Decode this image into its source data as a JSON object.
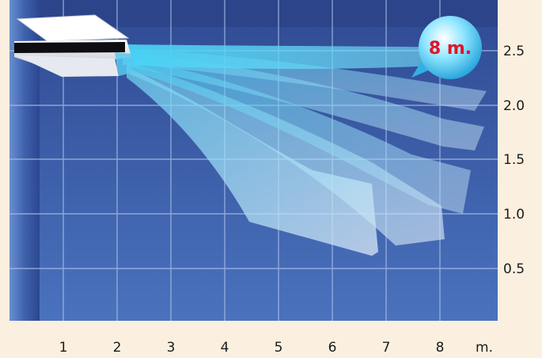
{
  "chart_data": {
    "type": "diagram",
    "x_ticks": [
      "1",
      "2",
      "3",
      "4",
      "5",
      "6",
      "7",
      "8"
    ],
    "x_unit": "m.",
    "y_ticks": [
      "2.5",
      "2.0",
      "1.5",
      "1.0",
      "0.5"
    ],
    "badge": "8 m.",
    "colors": {
      "room_background": "#3c5da7",
      "page_background": "#fbf0df",
      "airflow": "#4fd3f2",
      "badge_text": "#e2122a"
    },
    "icons": [
      "air-conditioner-unit"
    ]
  }
}
